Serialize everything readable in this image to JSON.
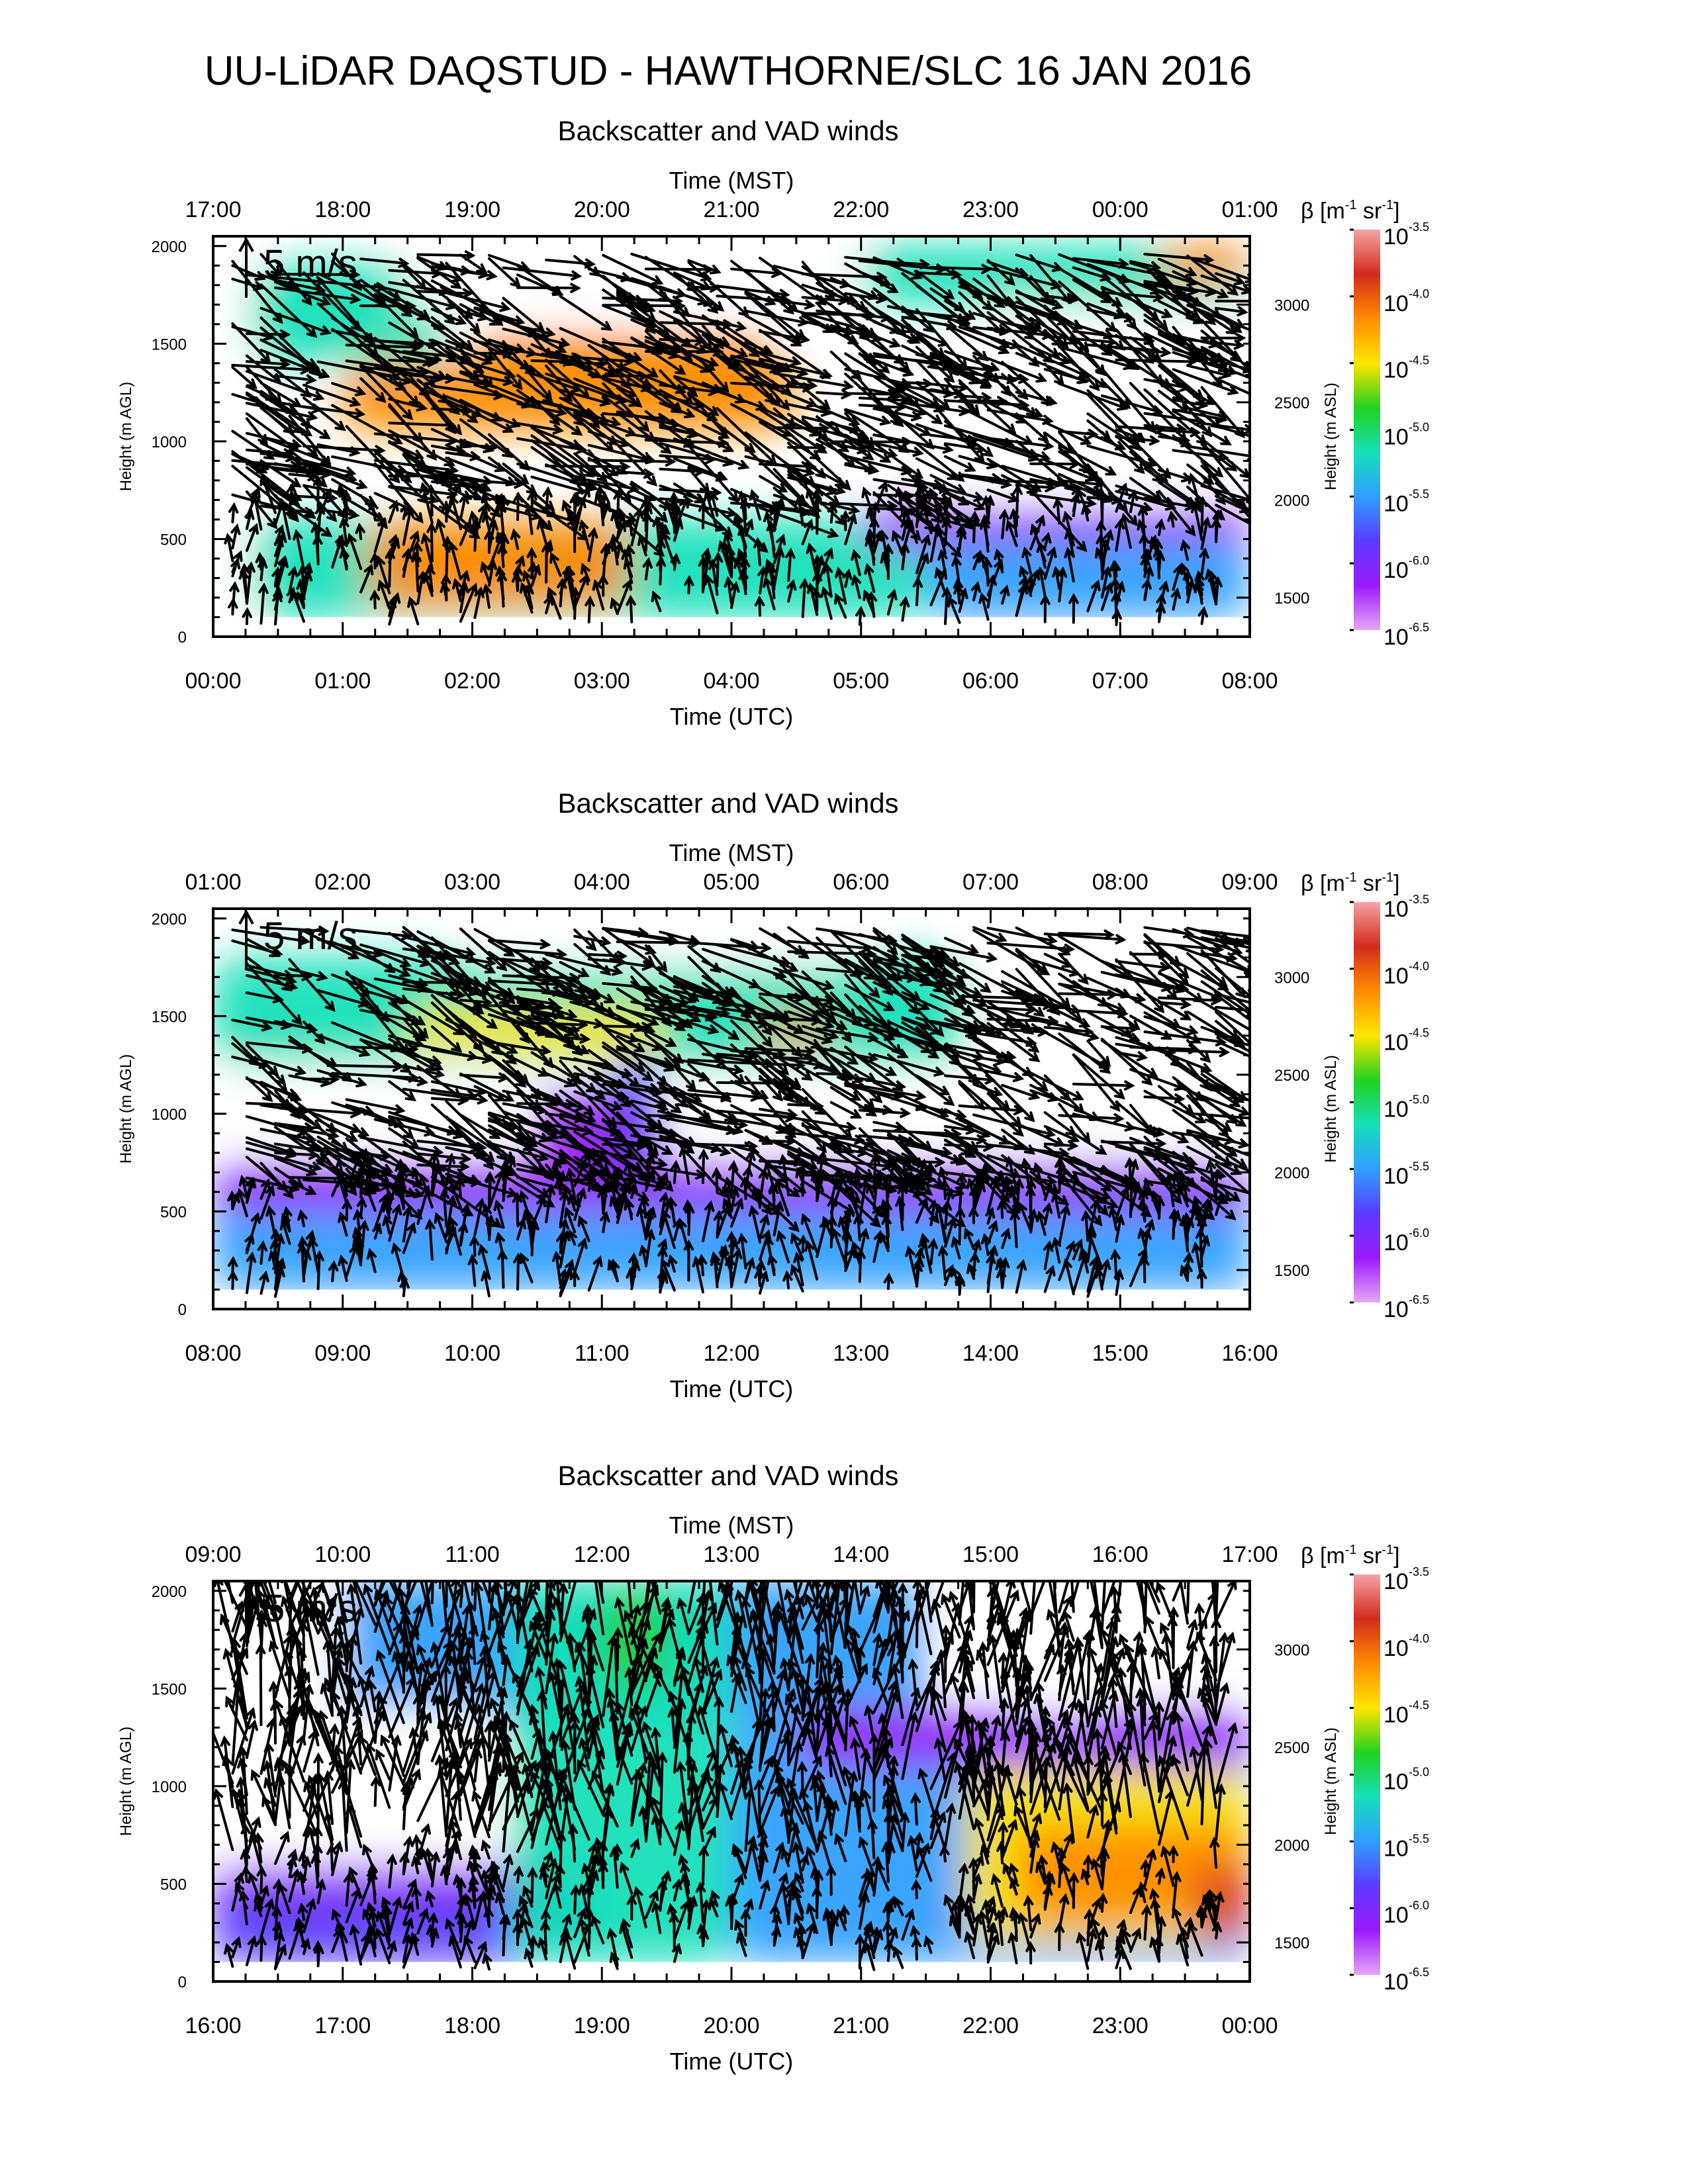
{
  "title": "UU-LiDAR DAQSTUD - HAWTHORNE/SLC 16 JAN 2016",
  "colorbar": {
    "label_prefix": "β [m",
    "label_unit1": "-1",
    "label_mid": " sr",
    "label_unit2": "-1",
    "label_suffix": "]",
    "base": "10",
    "exponents": [
      "-3.5",
      "-4.0",
      "-4.5",
      "-5.0",
      "-5.5",
      "-6.0",
      "-6.5"
    ],
    "colors": [
      "#f4a3a3",
      "#d42a1c",
      "#ff8c00",
      "#ffe600",
      "#22d11f",
      "#15e0b8",
      "#2f9fff",
      "#5b3bff",
      "#9a1bff",
      "#e7a6f2"
    ]
  },
  "chart_data": [
    {
      "type": "heatmap",
      "title": "Backscatter and VAD winds",
      "top_axis_title": "Time (MST)",
      "top_ticks": [
        "17:00",
        "18:00",
        "19:00",
        "20:00",
        "21:00",
        "22:00",
        "23:00",
        "00:00",
        "01:00"
      ],
      "xlabel": "Time (UTC)",
      "x_ticks": [
        "00:00",
        "01:00",
        "02:00",
        "03:00",
        "04:00",
        "05:00",
        "06:00",
        "07:00",
        "08:00"
      ],
      "ylabel": "Height (m AGL)",
      "y_ticks": [
        "0",
        "500",
        "1000",
        "1500",
        "2000"
      ],
      "ylim": [
        0,
        2050
      ],
      "y2label": "Height (m ASL)",
      "y2_ticks": [
        "1500",
        "2000",
        "2500",
        "3000"
      ],
      "scale_label": "5 m/s",
      "fields": [
        {
          "x": [
            0.3,
            1.8
          ],
          "y": [
            1400,
            1900
          ],
          "level": -5.2
        },
        {
          "x": [
            0.3,
            5.5
          ],
          "y": [
            100,
            600
          ],
          "level": -5.3
        },
        {
          "x": [
            1.2,
            3.2
          ],
          "y": [
            150,
            600
          ],
          "level": -4.3
        },
        {
          "x": [
            1.6,
            2.2
          ],
          "y": [
            200,
            450
          ],
          "level": -4.0
        },
        {
          "x": [
            1.0,
            4.5
          ],
          "y": [
            1050,
            1400
          ],
          "level": -4.3
        },
        {
          "x": [
            2.0,
            4.3
          ],
          "y": [
            1300,
            1550
          ],
          "level": -4.1
        },
        {
          "x": [
            5.0,
            8.0
          ],
          "y": [
            1700,
            2000
          ],
          "level": -5.3
        },
        {
          "x": [
            5.0,
            8.0
          ],
          "y": [
            450,
            650
          ],
          "level": -6.2
        },
        {
          "x": [
            5.5,
            8.0
          ],
          "y": [
            100,
            500
          ],
          "level": -5.4
        },
        {
          "x": [
            7.3,
            8.0
          ],
          "y": [
            1800,
            2000
          ],
          "level": -4.2
        }
      ],
      "blanks": [
        {
          "x": [
            1.5,
            5.0
          ],
          "y": [
            1650,
            2050
          ]
        },
        {
          "x": [
            5.8,
            7.7
          ],
          "y": [
            720,
            1400
          ]
        },
        {
          "x": [
            6.0,
            8.0
          ],
          "y": [
            1200,
            1700
          ]
        },
        {
          "x": [
            0.0,
            0.27
          ],
          "y": [
            0,
            2050
          ]
        }
      ]
    },
    {
      "type": "heatmap",
      "title": "Backscatter and VAD winds",
      "top_axis_title": "Time (MST)",
      "top_ticks": [
        "01:00",
        "02:00",
        "03:00",
        "04:00",
        "05:00",
        "06:00",
        "07:00",
        "08:00",
        "09:00"
      ],
      "xlabel": "Time (UTC)",
      "x_ticks": [
        "08:00",
        "09:00",
        "10:00",
        "11:00",
        "12:00",
        "13:00",
        "14:00",
        "15:00",
        "16:00"
      ],
      "ylabel": "Height (m AGL)",
      "y_ticks": [
        "0",
        "500",
        "1000",
        "1500",
        "2000"
      ],
      "ylim": [
        0,
        2050
      ],
      "y2label": "Height (m ASL)",
      "y2_ticks": [
        "1500",
        "2000",
        "2500",
        "3000"
      ],
      "scale_label": "5 m/s",
      "fields": [
        {
          "x": [
            0.0,
            5.8
          ],
          "y": [
            1250,
            1800
          ],
          "level": -5.3
        },
        {
          "x": [
            1.5,
            3.5
          ],
          "y": [
            1300,
            1550
          ],
          "level": -4.6
        },
        {
          "x": [
            4.2,
            4.8
          ],
          "y": [
            1350,
            1500
          ],
          "level": -4.1
        },
        {
          "x": [
            0.0,
            8.0
          ],
          "y": [
            100,
            700
          ],
          "level": -5.5
        },
        {
          "x": [
            0.0,
            8.0
          ],
          "y": [
            500,
            750
          ],
          "level": -6.3
        },
        {
          "x": [
            2.5,
            3.5
          ],
          "y": [
            750,
            1100
          ],
          "level": -6.3
        },
        {
          "x": [
            3.1,
            3.4
          ],
          "y": [
            700,
            1300
          ],
          "level": -5.7
        }
      ],
      "blanks": [
        {
          "x": [
            0.0,
            2.3
          ],
          "y": [
            800,
            1250
          ]
        },
        {
          "x": [
            3.5,
            8.0
          ],
          "y": [
            750,
            1200
          ]
        },
        {
          "x": [
            5.9,
            8.0
          ],
          "y": [
            1200,
            2050
          ]
        },
        {
          "x": [
            2.0,
            5.0
          ],
          "y": [
            1750,
            2050
          ]
        }
      ]
    },
    {
      "type": "heatmap",
      "title": "Backscatter and VAD winds",
      "top_axis_title": "Time (MST)",
      "top_ticks": [
        "09:00",
        "10:00",
        "11:00",
        "12:00",
        "13:00",
        "14:00",
        "15:00",
        "16:00",
        "17:00"
      ],
      "xlabel": "Time (UTC)",
      "x_ticks": [
        "16:00",
        "17:00",
        "18:00",
        "19:00",
        "20:00",
        "21:00",
        "22:00",
        "23:00",
        "00:00"
      ],
      "ylabel": "Height (m AGL)",
      "y_ticks": [
        "0",
        "500",
        "1000",
        "1500",
        "2000"
      ],
      "ylim": [
        0,
        2050
      ],
      "y2label": "Height (m ASL)",
      "y2_ticks": [
        "1500",
        "2000",
        "2500",
        "3000"
      ],
      "scale_label": "5 m/s",
      "fields": [
        {
          "x": [
            0.0,
            3.0
          ],
          "y": [
            100,
            550
          ],
          "level": -5.8
        },
        {
          "x": [
            0.0,
            3.0
          ],
          "y": [
            450,
            600
          ],
          "level": -6.3
        },
        {
          "x": [
            0.3,
            5.5
          ],
          "y": [
            1300,
            2050
          ],
          "level": -5.6
        },
        {
          "x": [
            2.3,
            4.0
          ],
          "y": [
            100,
            2050
          ],
          "level": -5.2
        },
        {
          "x": [
            3.0,
            3.5
          ],
          "y": [
            1500,
            2000
          ],
          "level": -4.8
        },
        {
          "x": [
            4.0,
            8.0
          ],
          "y": [
            100,
            1300
          ],
          "level": -5.4
        },
        {
          "x": [
            5.8,
            8.0
          ],
          "y": [
            200,
            1100
          ],
          "level": -4.4
        },
        {
          "x": [
            6.2,
            8.0
          ],
          "y": [
            300,
            800
          ],
          "level": -4.0
        },
        {
          "x": [
            7.6,
            8.0
          ],
          "y": [
            200,
            600
          ],
          "level": -3.8
        },
        {
          "x": [
            4.5,
            8.0
          ],
          "y": [
            1100,
            1400
          ],
          "level": -6.2
        }
      ],
      "blanks": [
        {
          "x": [
            0.0,
            2.2
          ],
          "y": [
            600,
            1400
          ]
        },
        {
          "x": [
            5.6,
            8.0
          ],
          "y": [
            1450,
            2050
          ]
        },
        {
          "x": [
            0.0,
            1.0
          ],
          "y": [
            1400,
            2050
          ]
        },
        {
          "x": [
            6.3,
            6.8
          ],
          "y": [
            1350,
            1450
          ]
        }
      ]
    }
  ]
}
